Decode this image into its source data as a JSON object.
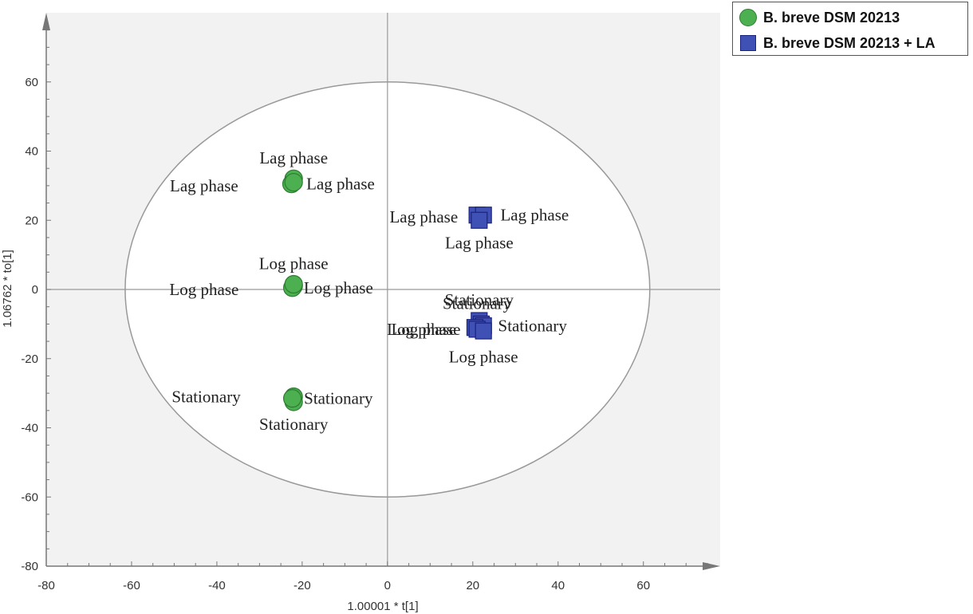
{
  "colors": {
    "group1_fill": "#4caf50",
    "group1_stroke": "#2e7d32",
    "group2_fill": "#3f51b5",
    "group2_stroke": "#1a237e",
    "plot_bg": "#f2f2f2",
    "ellipse_fill": "#ffffff",
    "ellipse_stroke": "#999999"
  },
  "legend": {
    "placement": "top-right",
    "items": [
      {
        "label": "B. breve DSM 20213",
        "marker": "circle",
        "color": "#4caf50"
      },
      {
        "label": "B. breve DSM 20213 + LA",
        "marker": "square",
        "color": "#3f51b5"
      }
    ]
  },
  "chart_data": {
    "type": "scatter",
    "title": "",
    "xlabel": "1.00001 * t[1]",
    "ylabel": "1.06762 * to[1]",
    "xlim": [
      -80,
      78
    ],
    "ylim": [
      -80,
      80
    ],
    "xticks": [
      -80,
      -60,
      -40,
      -20,
      0,
      20,
      40,
      60
    ],
    "yticks": [
      -80,
      -60,
      -40,
      -20,
      0,
      20,
      40,
      60
    ],
    "grid": false,
    "ellipse": {
      "center": [
        0,
        0
      ],
      "rx": 61.5,
      "ry": 60
    },
    "series": [
      {
        "name": "B. breve DSM 20213",
        "marker": "circle",
        "points": [
          {
            "x": -22,
            "y": 32,
            "label": "Lag phase"
          },
          {
            "x": -22.5,
            "y": 30.5,
            "label": "Lag phase"
          },
          {
            "x": -22,
            "y": 31,
            "label": "Lag phase"
          },
          {
            "x": -22,
            "y": 1,
            "label": "Log phase"
          },
          {
            "x": -22.3,
            "y": 0.5,
            "label": "Log phase"
          },
          {
            "x": -22,
            "y": 1.5,
            "label": "Log phase"
          },
          {
            "x": -22,
            "y": -31,
            "label": "Stationary"
          },
          {
            "x": -22,
            "y": -32.5,
            "label": "Stationary"
          },
          {
            "x": -22.3,
            "y": -31.5,
            "label": "Stationary"
          }
        ]
      },
      {
        "name": "B. breve DSM 20213 + LA",
        "marker": "square",
        "points": [
          {
            "x": 21,
            "y": 21.5,
            "label": "Lag phase"
          },
          {
            "x": 22.5,
            "y": 21.5,
            "label": "Lag phase"
          },
          {
            "x": 21.5,
            "y": 20,
            "label": "Lag phase"
          },
          {
            "x": 21.5,
            "y": -9,
            "label": "Stationary"
          },
          {
            "x": 22,
            "y": -10,
            "label": "Stationary"
          },
          {
            "x": 22.5,
            "y": -10.5,
            "label": "Stationary"
          },
          {
            "x": 20.5,
            "y": -11,
            "label": "Log phase"
          },
          {
            "x": 21,
            "y": -11.5,
            "label": "Log phase"
          },
          {
            "x": 22.5,
            "y": -12,
            "label": "Log phase"
          }
        ]
      }
    ],
    "labels": [
      {
        "text": "Lag phase",
        "x": -22,
        "y": 38
      },
      {
        "text": "Lag phase",
        "x": -43,
        "y": 30
      },
      {
        "text": "Lag phase",
        "x": -11,
        "y": 30.5
      },
      {
        "text": "Log phase",
        "x": -22,
        "y": 7.5
      },
      {
        "text": "Log phase",
        "x": -43,
        "y": 0
      },
      {
        "text": "Log phase",
        "x": -11.5,
        "y": 0.5
      },
      {
        "text": "Stationary",
        "x": -42.5,
        "y": -31
      },
      {
        "text": "Stationary",
        "x": -11.5,
        "y": -31.5
      },
      {
        "text": "Stationary",
        "x": -22,
        "y": -39
      },
      {
        "text": "Lag phase",
        "x": 8.5,
        "y": 21
      },
      {
        "text": "Lag phase",
        "x": 34.5,
        "y": 21.5
      },
      {
        "text": "Lag phase",
        "x": 21.5,
        "y": 13.5
      },
      {
        "text": "Stationary",
        "x": 21.5,
        "y": -3
      },
      {
        "text": "Stationary",
        "x": 21,
        "y": -4
      },
      {
        "text": "Stationary",
        "x": 34,
        "y": -10.5
      },
      {
        "text": "Log phase",
        "x": 8,
        "y": -11.5
      },
      {
        "text": "Log phase",
        "x": 9,
        "y": -11.5
      },
      {
        "text": "Log phase",
        "x": 22.5,
        "y": -19.5
      }
    ]
  }
}
